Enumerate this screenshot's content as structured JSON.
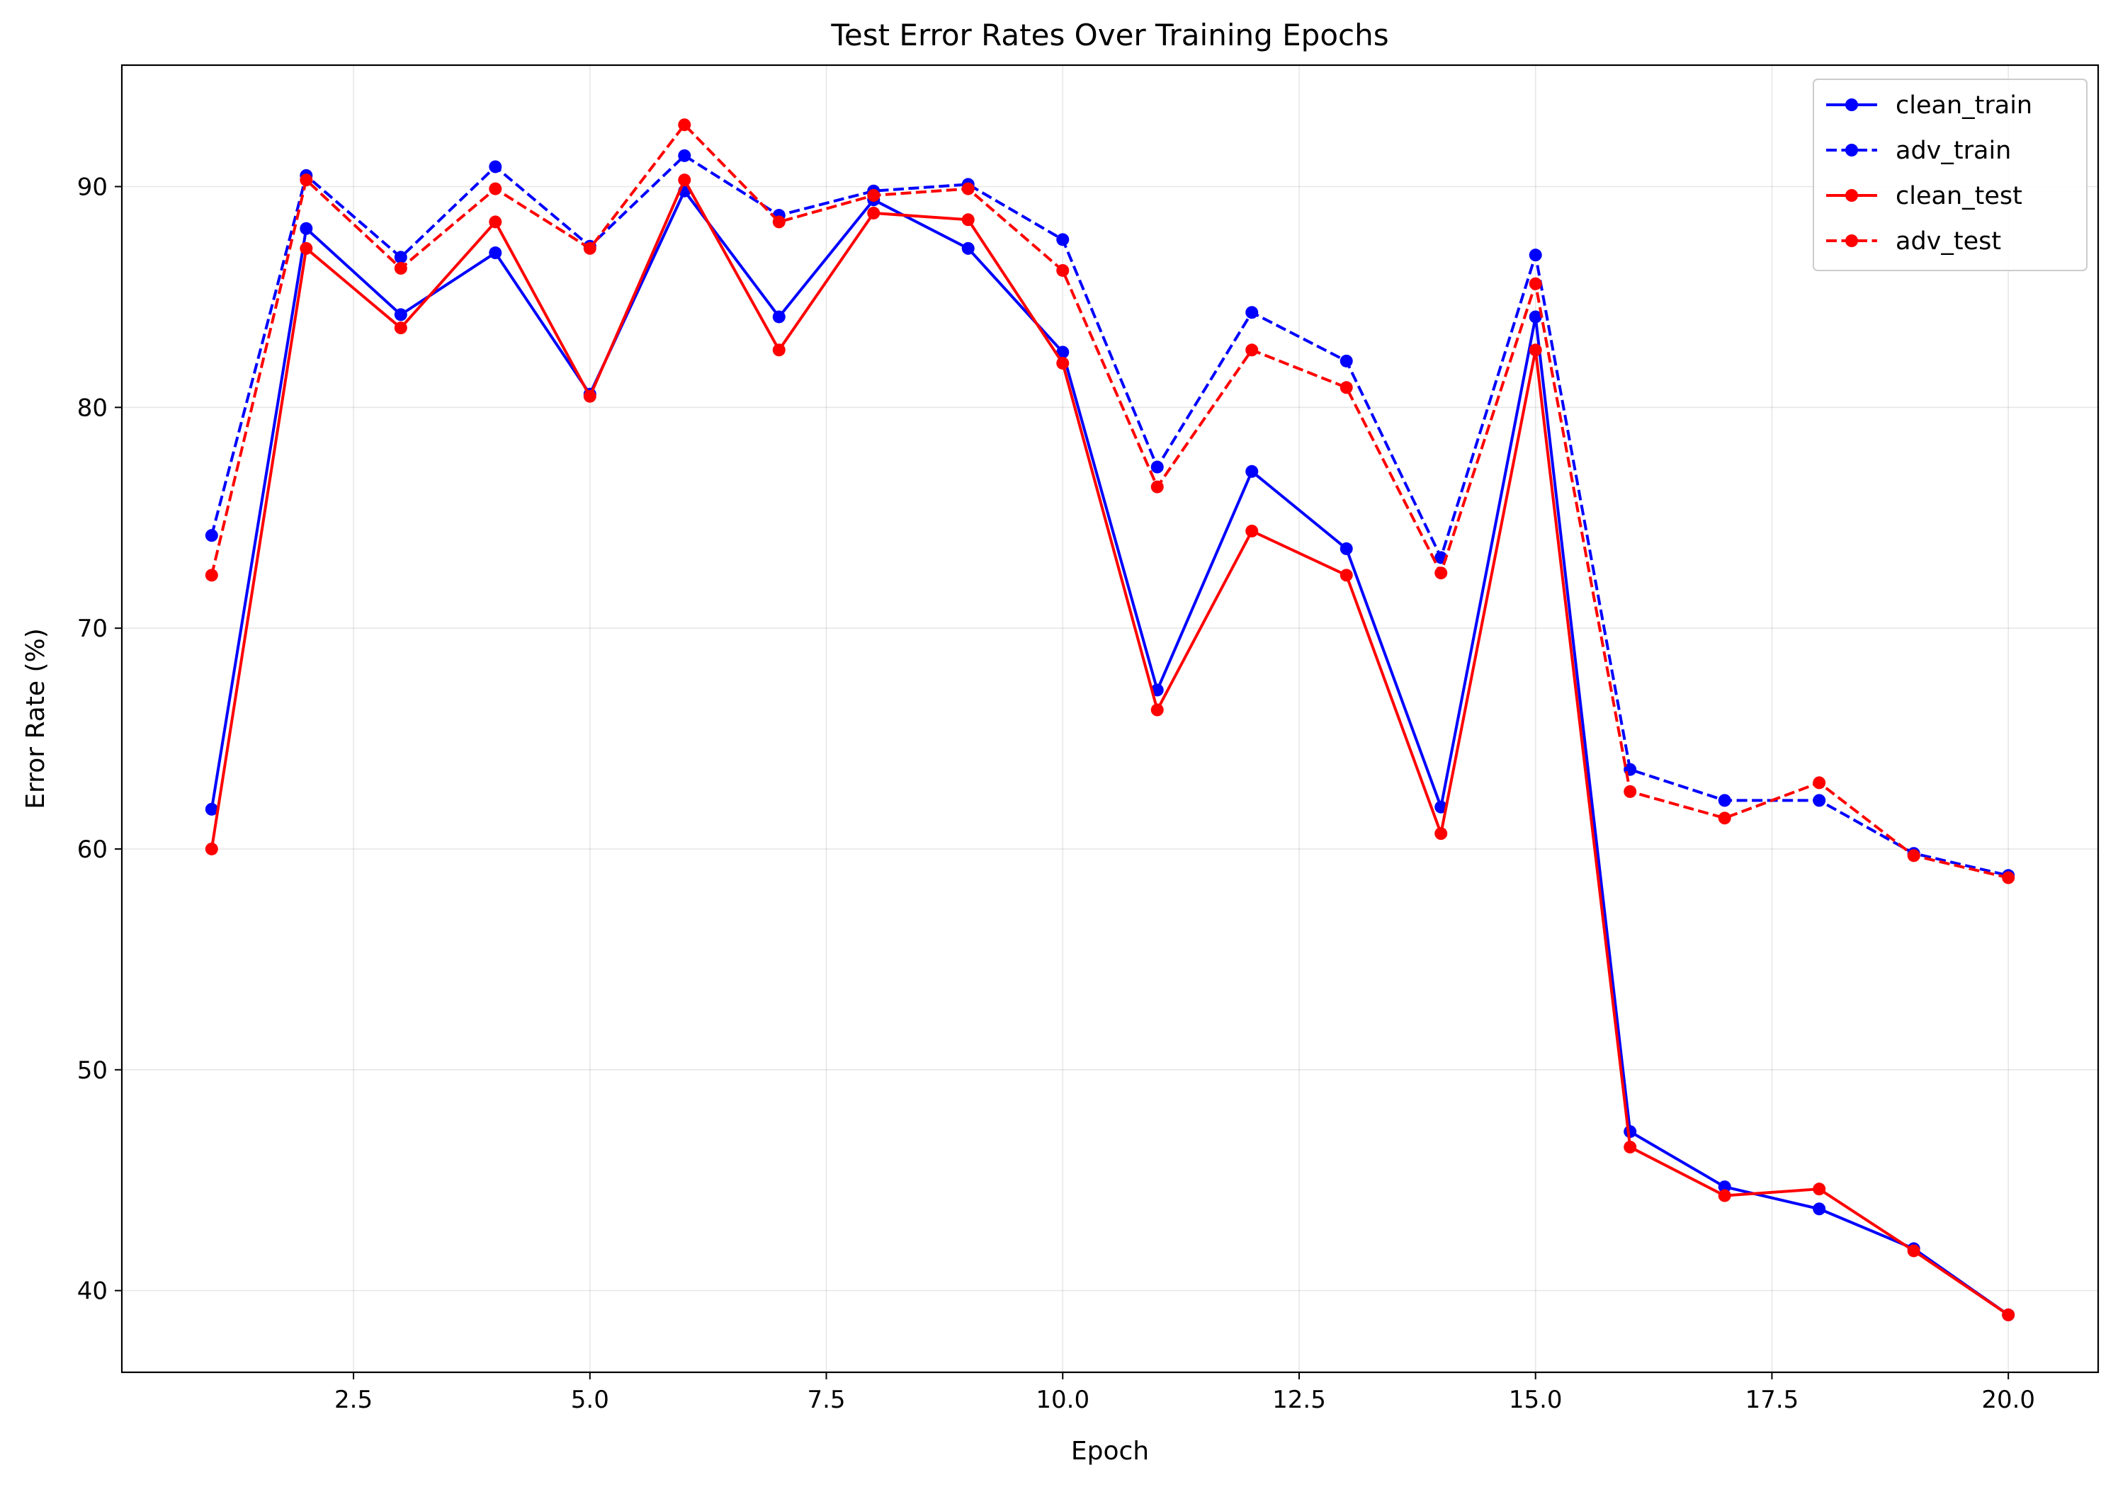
{
  "chart_data": {
    "type": "line",
    "title": "Test Error Rates Over Training Epochs",
    "xlabel": "Epoch",
    "ylabel": "Error Rate (%)",
    "xlim": [
      0.05,
      20.95
    ],
    "ylim": [
      36.3,
      95.5
    ],
    "xticks": [
      2.5,
      5.0,
      7.5,
      10.0,
      12.5,
      15.0,
      17.5,
      20.0
    ],
    "xtick_labels": [
      "2.5",
      "5.0",
      "7.5",
      "10.0",
      "12.5",
      "15.0",
      "17.5",
      "20.0"
    ],
    "yticks": [
      40,
      50,
      60,
      70,
      80,
      90
    ],
    "ytick_labels": [
      "40",
      "50",
      "60",
      "70",
      "80",
      "90"
    ],
    "grid": true,
    "legend_position": "top-right",
    "x": [
      1,
      2,
      3,
      4,
      5,
      6,
      7,
      8,
      9,
      10,
      11,
      12,
      13,
      14,
      15,
      16,
      17,
      18,
      19,
      20
    ],
    "series": [
      {
        "name": "clean_train",
        "color": "#0000ff",
        "style": "solid",
        "values": [
          61.8,
          88.1,
          84.2,
          87.0,
          80.6,
          89.8,
          84.1,
          89.4,
          87.2,
          82.5,
          67.2,
          77.1,
          73.6,
          61.9,
          84.1,
          47.2,
          44.7,
          43.7,
          41.9,
          38.9
        ]
      },
      {
        "name": "adv_train",
        "color": "#0000ff",
        "style": "dashed",
        "values": [
          74.2,
          90.5,
          86.8,
          90.9,
          87.3,
          91.4,
          88.7,
          89.8,
          90.1,
          87.6,
          77.3,
          84.3,
          82.1,
          73.2,
          86.9,
          63.6,
          62.2,
          62.2,
          59.8,
          58.8
        ]
      },
      {
        "name": "clean_test",
        "color": "#ff0000",
        "style": "solid",
        "values": [
          60.0,
          87.2,
          83.6,
          88.4,
          80.5,
          90.3,
          82.6,
          88.8,
          88.5,
          82.0,
          66.3,
          74.4,
          72.4,
          60.7,
          82.6,
          46.5,
          44.3,
          44.6,
          41.8,
          38.9
        ]
      },
      {
        "name": "adv_test",
        "color": "#ff0000",
        "style": "dashed",
        "values": [
          72.4,
          90.3,
          86.3,
          89.9,
          87.2,
          92.8,
          88.4,
          89.6,
          89.9,
          86.2,
          76.4,
          82.6,
          80.9,
          72.5,
          85.6,
          62.6,
          61.4,
          63.0,
          59.7,
          58.7
        ]
      }
    ]
  }
}
